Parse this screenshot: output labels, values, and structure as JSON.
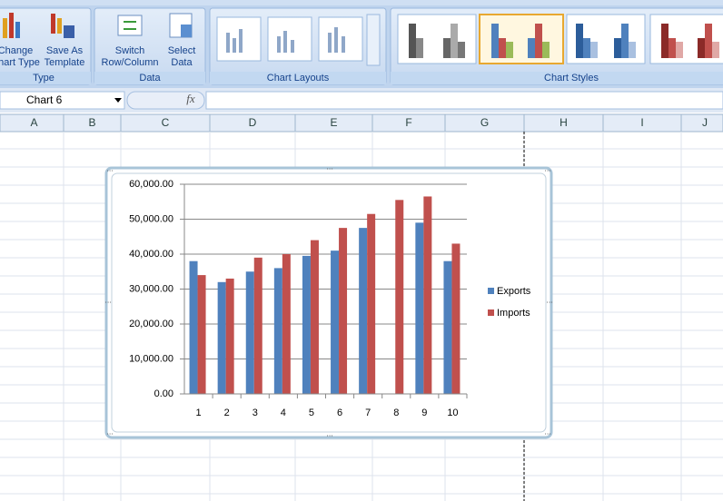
{
  "ribbon": {
    "groups": [
      {
        "label": "Type",
        "buttons": [
          {
            "line1": "Change",
            "line2": "Chart Type"
          },
          {
            "line1": "Save As",
            "line2": "Template"
          }
        ]
      },
      {
        "label": "Data",
        "buttons": [
          {
            "line1": "Switch",
            "line2": "Row/Column"
          },
          {
            "line1": "Select",
            "line2": "Data"
          }
        ]
      },
      {
        "label": "Chart Layouts"
      },
      {
        "label": "Chart Styles"
      }
    ]
  },
  "formula_bar": {
    "name_box": "Chart 6",
    "function_icon": "fx"
  },
  "sheet": {
    "columns": [
      "A",
      "B",
      "C",
      "D",
      "E",
      "F",
      "G",
      "H",
      "I",
      "J"
    ]
  },
  "chart_data": {
    "type": "bar",
    "categories": [
      "1",
      "2",
      "3",
      "4",
      "5",
      "6",
      "7",
      "8",
      "9",
      "10"
    ],
    "series": [
      {
        "name": "Exports",
        "color": "#4f81bd",
        "values": [
          38000,
          32000,
          35000,
          36000,
          39500,
          41000,
          47500,
          null,
          49000,
          38000
        ]
      },
      {
        "name": "Imports",
        "color": "#c0504d",
        "values": [
          34000,
          33000,
          39000,
          40000,
          44000,
          47500,
          51500,
          55500,
          56500,
          43000
        ]
      }
    ],
    "ylim": [
      0,
      60000
    ],
    "yticks": [
      {
        "value": 0,
        "label": "0.00"
      },
      {
        "value": 10000,
        "label": "10,000.00"
      },
      {
        "value": 20000,
        "label": "20,000.00"
      },
      {
        "value": 30000,
        "label": "30,000.00"
      },
      {
        "value": 40000,
        "label": "40,000.00"
      },
      {
        "value": 50000,
        "label": "50,000.00"
      },
      {
        "value": 60000,
        "label": "60,000.00"
      }
    ],
    "grid": true,
    "legend": "right"
  }
}
